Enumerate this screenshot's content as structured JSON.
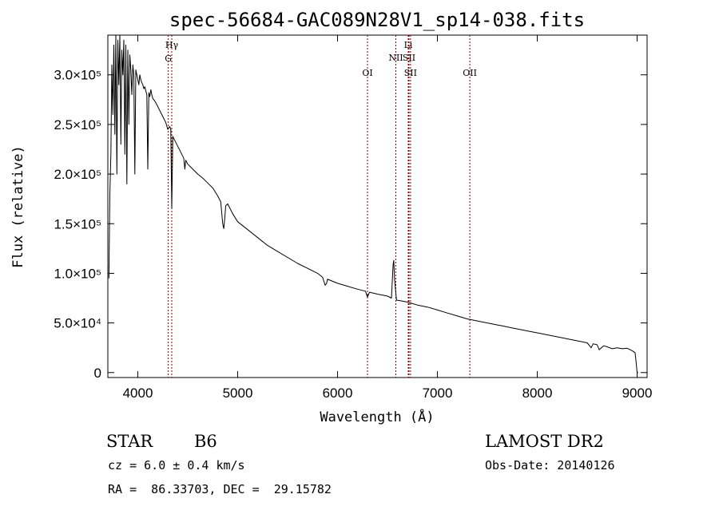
{
  "title": "spec-56684-GAC089N28V1_sp14-038.fits",
  "info": {
    "object_class": "STAR",
    "subclass": "B6",
    "survey": "LAMOST DR2",
    "redshift": "cz = 6.0 ± 0.4 km/s",
    "obs_date": "Obs-Date: 20140126",
    "coords": "RA =  86.33703, DEC =  29.15782"
  },
  "chart_data": {
    "type": "line",
    "title": "spec-56684-GAC089N28V1_sp14-038.fits",
    "xlabel": "Wavelength (Å)",
    "ylabel": "Flux (relative)",
    "xlim": [
      3700,
      9100
    ],
    "ylim": [
      -5000,
      340000
    ],
    "grid": false,
    "x_ticks": [
      4000,
      5000,
      6000,
      7000,
      8000,
      9000
    ],
    "y_ticks": [
      {
        "value": 0,
        "label": "0"
      },
      {
        "value": 50000,
        "label": "5.0×10⁴"
      },
      {
        "value": 100000,
        "label": "1.0×10⁵"
      },
      {
        "value": 150000,
        "label": "1.5×10⁵"
      },
      {
        "value": 200000,
        "label": "2.0×10⁵"
      },
      {
        "value": 250000,
        "label": "2.5×10⁵"
      },
      {
        "value": 300000,
        "label": "3.0×10⁵"
      }
    ],
    "line_color": "#000000",
    "marker_color": "#8b0000",
    "spectral_lines": [
      {
        "label": "Hγ",
        "wavelength": 4340,
        "row": 0
      },
      {
        "label": "G",
        "wavelength": 4305,
        "row": 1
      },
      {
        "label": "OI",
        "wavelength": 6300,
        "row": 3
      },
      {
        "label": "NII",
        "wavelength": 6584,
        "row": 2
      },
      {
        "label": "Li",
        "wavelength": 6708,
        "row": 0
      },
      {
        "label": "SII",
        "wavelength": 6716,
        "row": 2
      },
      {
        "label": "SII",
        "wavelength": 6731,
        "row": 3
      },
      {
        "label": "OII",
        "wavelength": 7325,
        "row": 3
      }
    ],
    "series": [
      {
        "x": [
          3710,
          3720,
          3730,
          3740,
          3750,
          3760,
          3770,
          3780,
          3790,
          3800,
          3810,
          3820,
          3830,
          3840,
          3850,
          3860,
          3870,
          3880,
          3890,
          3900,
          3910,
          3920,
          3930,
          3940,
          3950,
          3960,
          3970,
          3980,
          3990,
          4000,
          4010,
          4020,
          4030,
          4040,
          4050,
          4060,
          4070,
          4080,
          4090,
          4100,
          4110,
          4120,
          4130,
          4140,
          4150,
          4160,
          4180,
          4200,
          4220,
          4240,
          4260,
          4280,
          4300,
          4320,
          4330,
          4340,
          4350,
          4360,
          4380,
          4400,
          4420,
          4440,
          4460,
          4471,
          4480,
          4500,
          4550,
          4600,
          4650,
          4700,
          4750,
          4800,
          4830,
          4850,
          4861,
          4870,
          4880,
          4900,
          4920,
          4950,
          5000,
          5100,
          5200,
          5300,
          5400,
          5500,
          5600,
          5700,
          5800,
          5850,
          5876,
          5890,
          5900,
          6000,
          6100,
          6200,
          6280,
          6300,
          6320,
          6400,
          6500,
          6540,
          6556,
          6563,
          6570,
          6590,
          6650,
          6700,
          6800,
          6900,
          7000,
          7100,
          7200,
          7300,
          7400,
          7500,
          7600,
          7650,
          7700,
          7800,
          7900,
          8000,
          8100,
          8200,
          8300,
          8400,
          8500,
          8540,
          8560,
          8600,
          8620,
          8665,
          8700,
          8750,
          8800,
          8850,
          8900,
          8950,
          8980,
          8990,
          9000,
          9010
        ],
        "y": [
          95000,
          180000,
          220000,
          310000,
          260000,
          330000,
          240000,
          340000,
          200000,
          335000,
          290000,
          340000,
          230000,
          325000,
          300000,
          335000,
          220000,
          330000,
          190000,
          325000,
          250000,
          320000,
          305000,
          280000,
          310000,
          300000,
          200000,
          305000,
          300000,
          295000,
          290000,
          300000,
          295000,
          292000,
          290000,
          286000,
          288000,
          284000,
          280000,
          205000,
          282000,
          278000,
          285000,
          280000,
          276000,
          275000,
          272000,
          268000,
          264000,
          260000,
          256000,
          252000,
          245000,
          248000,
          245000,
          165000,
          238000,
          236000,
          232000,
          228000,
          224000,
          220000,
          216000,
          205000,
          214000,
          210000,
          205000,
          200000,
          196000,
          191000,
          186000,
          178000,
          172000,
          150000,
          145000,
          155000,
          168000,
          170000,
          166000,
          160000,
          152000,
          144000,
          136000,
          128000,
          122000,
          116000,
          110000,
          105000,
          100000,
          96000,
          88000,
          90000,
          94000,
          90000,
          87000,
          84000,
          82000,
          76000,
          81000,
          79000,
          77000,
          75000,
          108000,
          113000,
          95000,
          73000,
          72000,
          71000,
          68000,
          66000,
          63000,
          60000,
          57000,
          54000,
          52000,
          50000,
          48000,
          47000,
          46000,
          44000,
          42000,
          40000,
          38000,
          36000,
          34000,
          32000,
          30000,
          25000,
          29000,
          28000,
          23000,
          27000,
          26000,
          24000,
          25000,
          24000,
          24500,
          22000,
          20000,
          10000,
          0,
          0
        ]
      }
    ]
  }
}
